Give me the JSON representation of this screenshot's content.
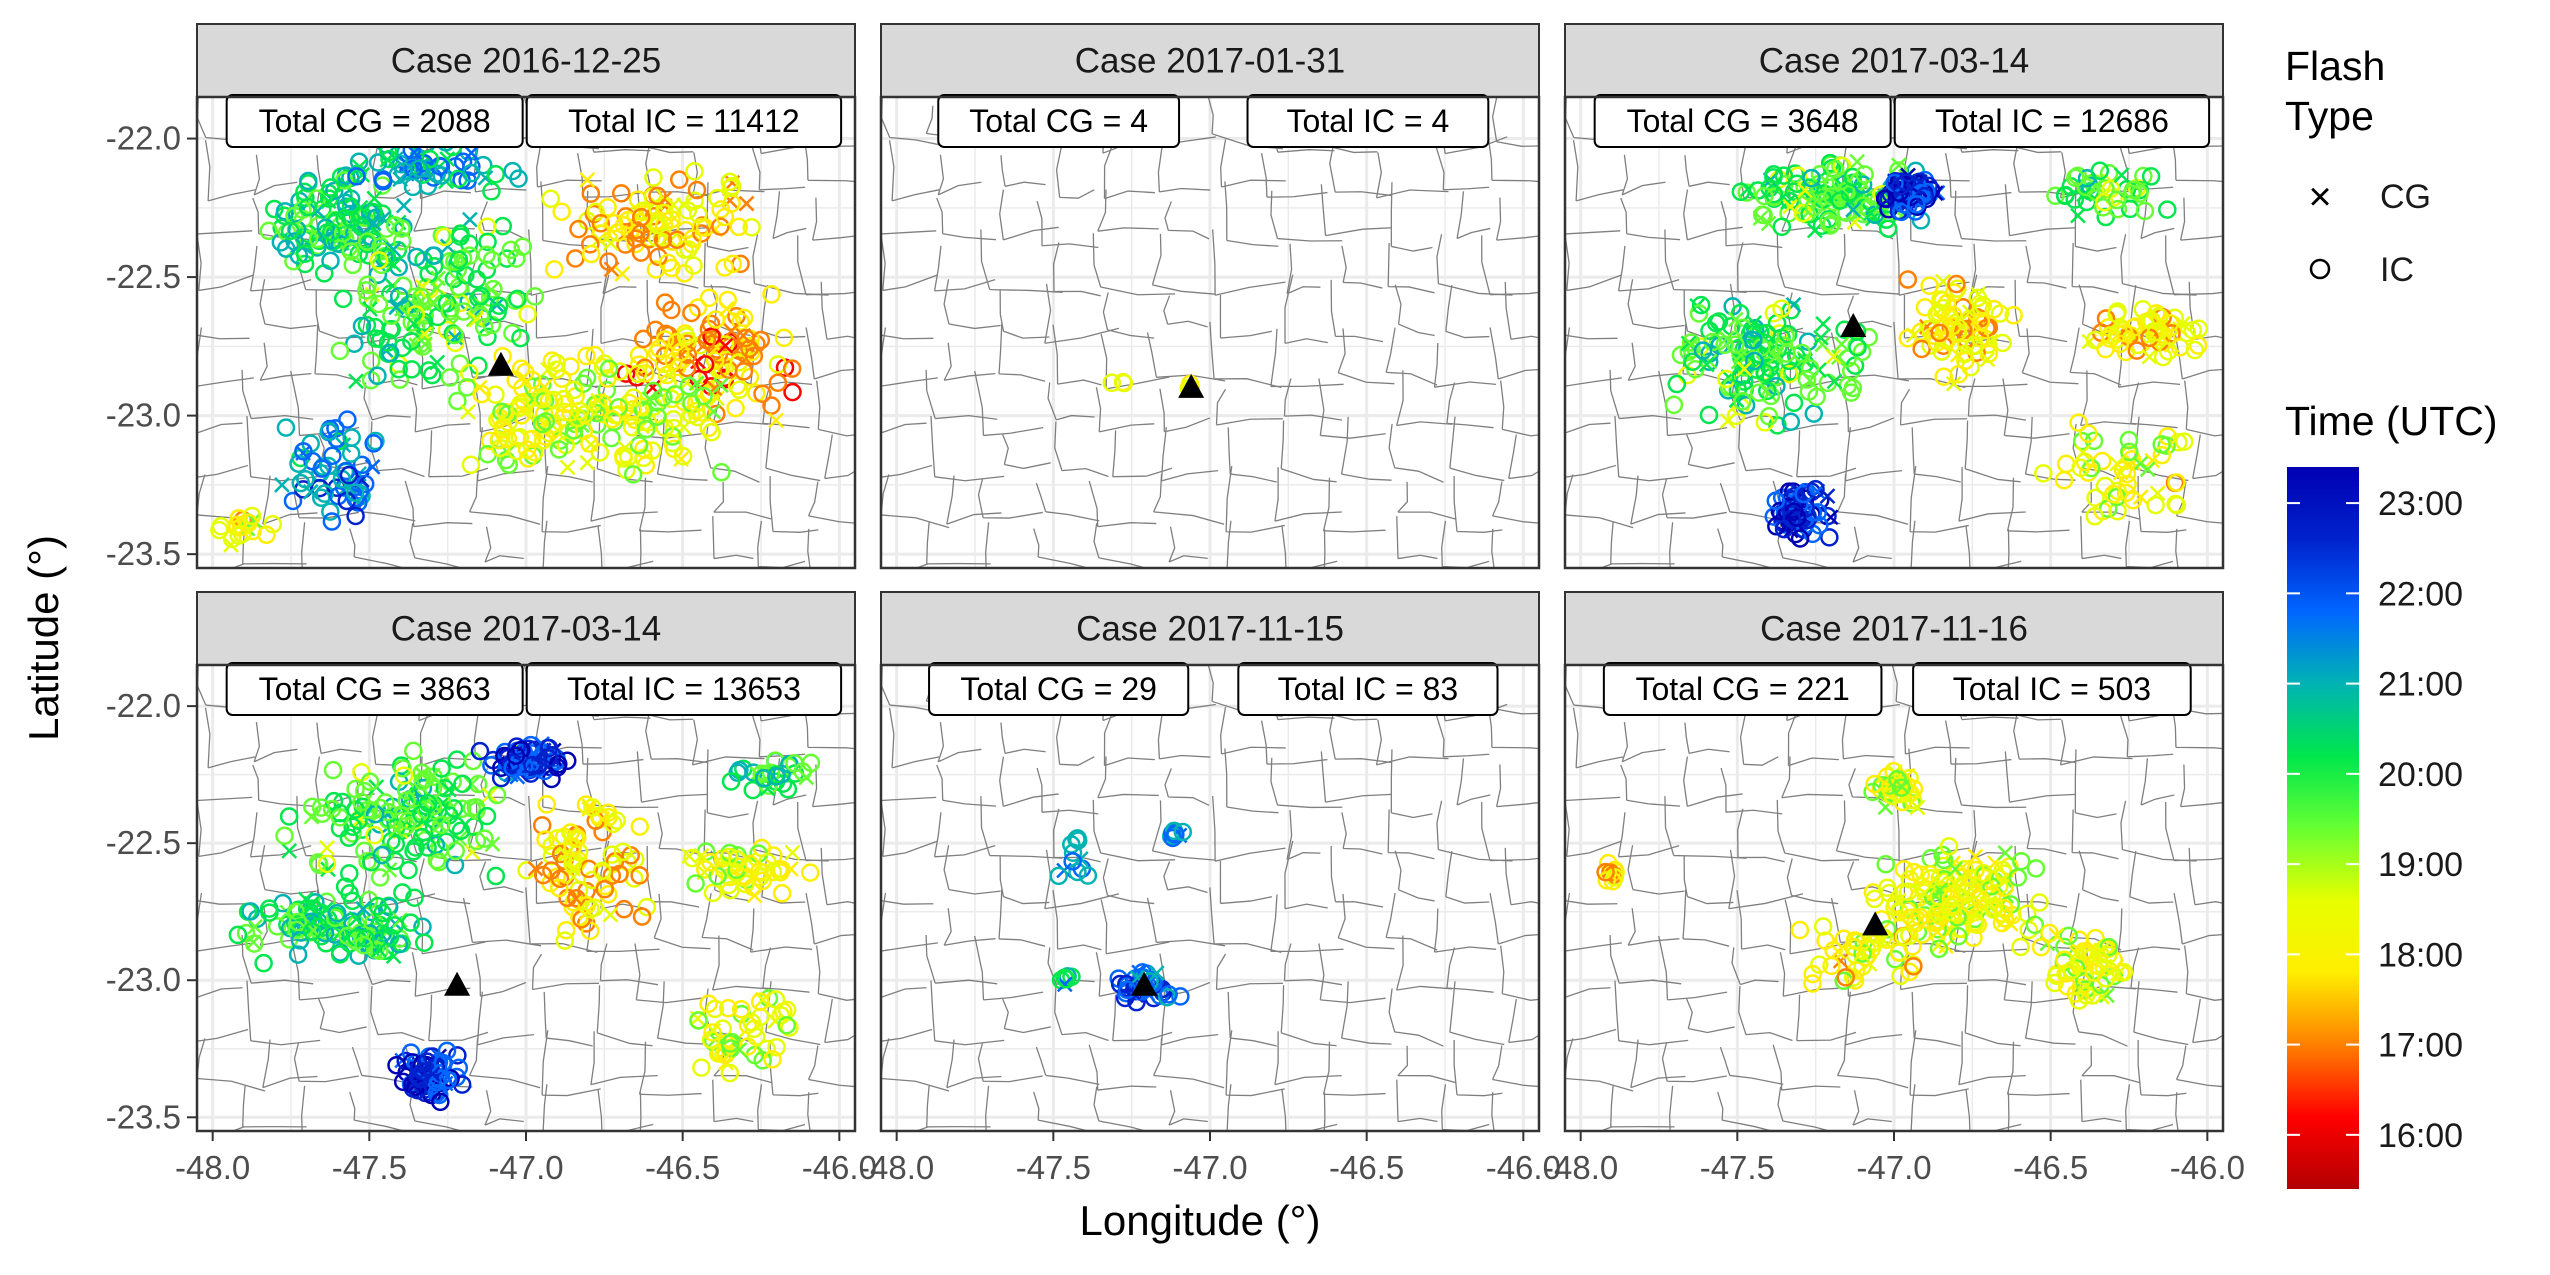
{
  "chart_data": {
    "type": "scatter",
    "x_axis": {
      "label": "Longitude (°)",
      "range": [
        -48.05,
        -45.95
      ],
      "ticks": [
        -48.0,
        -47.5,
        -47.0,
        -46.5,
        -46.0
      ],
      "tick_labels": [
        "-48.0",
        "-47.5",
        "-47.0",
        "-46.5",
        "-46.0"
      ]
    },
    "y_axis": {
      "label": "Latitude (°)",
      "range": [
        -23.55,
        -21.85
      ],
      "ticks": [
        -22.0,
        -22.5,
        -23.0,
        -23.5
      ],
      "tick_labels": [
        "-22.0",
        "-22.5",
        "-23.0",
        "-23.5"
      ]
    },
    "grid": true,
    "legend_placement": "right",
    "legend": {
      "shape_title_line1": "Flash",
      "shape_title_line2": "Type",
      "shapes": [
        {
          "label": "CG",
          "symbol": "×"
        },
        {
          "label": "IC",
          "symbol": "○"
        }
      ],
      "color_title": "Time (UTC)",
      "color_scale": [
        "#b30000",
        "#ff0000",
        "#ff8000",
        "#ffee00",
        "#e6ff00",
        "#66ff33",
        "#00e64d",
        "#00b3b3",
        "#0066ff",
        "#0022cc",
        "#0000b3"
      ],
      "color_ticks": [
        "16:00",
        "17:00",
        "18:00",
        "19:00",
        "20:00",
        "21:00",
        "22:00",
        "23:00"
      ]
    },
    "panels": [
      {
        "title": "Case 2016-12-25",
        "total_cg": "Total CG = 2088",
        "total_ic": "Total IC = 11412",
        "marker": {
          "lon": -47.08,
          "lat": -22.82
        }
      },
      {
        "title": "Case 2017-01-31",
        "total_cg": "Total CG = 4",
        "total_ic": "Total IC = 4",
        "marker": {
          "lon": -47.06,
          "lat": -22.9
        }
      },
      {
        "title": "Case 2017-03-14",
        "total_cg": "Total CG = 3648",
        "total_ic": "Total IC = 12686",
        "marker": {
          "lon": -47.13,
          "lat": -22.68
        }
      },
      {
        "title": "Case 2017-03-14",
        "total_cg": "Total CG = 3863",
        "total_ic": "Total IC = 13653",
        "marker": {
          "lon": -47.22,
          "lat": -23.02
        }
      },
      {
        "title": "Case 2017-11-15",
        "total_cg": "Total CG = 29",
        "total_ic": "Total IC = 83",
        "marker": {
          "lon": -47.21,
          "lat": -23.02
        }
      },
      {
        "title": "Case 2017-11-16",
        "total_cg": "Total CG = 221",
        "total_ic": "Total IC = 503",
        "marker": {
          "lon": -47.06,
          "lat": -22.8
        }
      }
    ]
  }
}
